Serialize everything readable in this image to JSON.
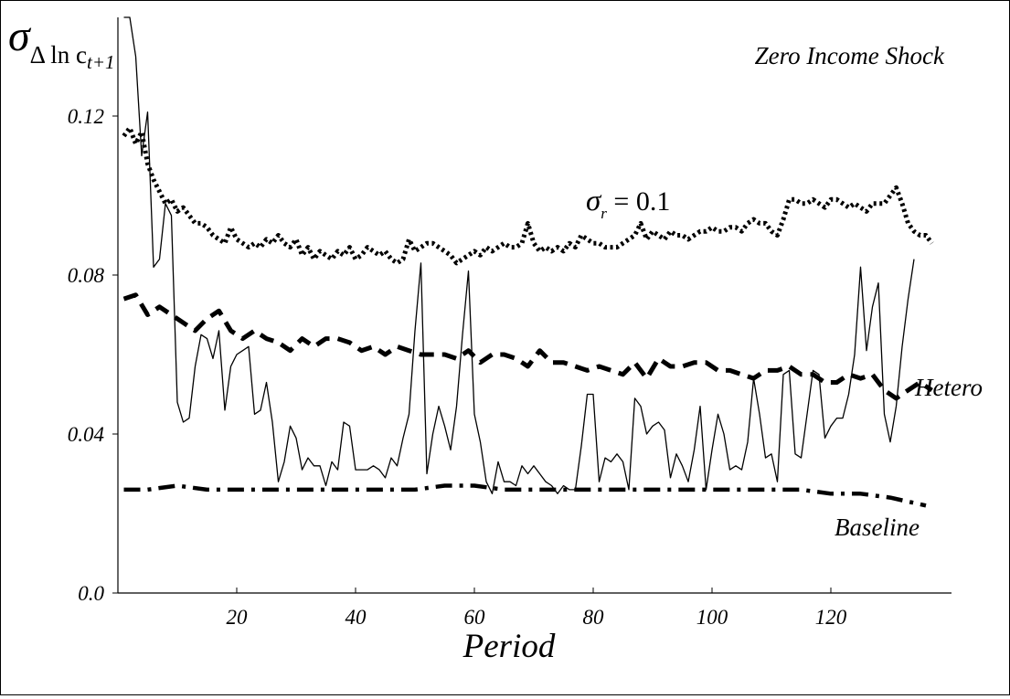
{
  "chart_data": {
    "type": "line",
    "xlabel": "Period",
    "ylabel": {
      "symbol": "σ",
      "subscript": "Δ ln c",
      "sub_subscript": "t+1"
    },
    "xlim": [
      0,
      140
    ],
    "ylim": [
      0,
      0.13
    ],
    "x_ticks": [
      20,
      40,
      60,
      80,
      100,
      120
    ],
    "x_tick_labels": [
      "20",
      "40",
      "60",
      "80",
      "100",
      "120"
    ],
    "y_ticks": [
      0,
      0.04,
      0.08,
      0.12
    ],
    "y_tick_labels": [
      "0.0",
      "0.04",
      "0.08",
      "0.12"
    ],
    "grid": false,
    "annotations": {
      "zero_income_shock": "Zero Income Shock",
      "sigma_r": {
        "symbol": "σ",
        "subscript": "r",
        "rest": " = 0.1"
      },
      "hetero": "Hetero",
      "baseline": "Baseline"
    },
    "series": [
      {
        "key": "zero_income_shock",
        "style": "solid-thin",
        "x": [
          1,
          2,
          3,
          4,
          5,
          6,
          7,
          8,
          9,
          10,
          11,
          12,
          13,
          14,
          15,
          16,
          17,
          18,
          19,
          20,
          21,
          22,
          23,
          24,
          25,
          26,
          27,
          28,
          29,
          30,
          31,
          32,
          33,
          34,
          35,
          36,
          37,
          38,
          39,
          40,
          41,
          42,
          43,
          44,
          45,
          46,
          47,
          48,
          49,
          50,
          51,
          52,
          53,
          54,
          55,
          56,
          57,
          58,
          59,
          60,
          61,
          62,
          63,
          64,
          65,
          66,
          67,
          68,
          69,
          70,
          71,
          72,
          73,
          74,
          75,
          76,
          77,
          78,
          79,
          80,
          81,
          82,
          83,
          84,
          85,
          86,
          87,
          88,
          89,
          90,
          91,
          92,
          93,
          94,
          95,
          96,
          97,
          98,
          99,
          100,
          101,
          102,
          103,
          104,
          105,
          106,
          107,
          108,
          109,
          110,
          111,
          112,
          113,
          114,
          115,
          116,
          117,
          118,
          119,
          120,
          121,
          122,
          123,
          124,
          125,
          126,
          127,
          128,
          129,
          130,
          131,
          132,
          133,
          134
        ],
        "y": [
          0.16,
          0.15,
          0.135,
          0.11,
          0.121,
          0.082,
          0.084,
          0.098,
          0.095,
          0.048,
          0.043,
          0.044,
          0.057,
          0.065,
          0.064,
          0.059,
          0.066,
          0.046,
          0.057,
          0.06,
          0.061,
          0.062,
          0.045,
          0.046,
          0.053,
          0.043,
          0.028,
          0.033,
          0.042,
          0.039,
          0.031,
          0.034,
          0.032,
          0.032,
          0.027,
          0.033,
          0.031,
          0.043,
          0.042,
          0.031,
          0.031,
          0.031,
          0.032,
          0.031,
          0.029,
          0.034,
          0.032,
          0.039,
          0.045,
          0.066,
          0.083,
          0.03,
          0.04,
          0.047,
          0.042,
          0.036,
          0.047,
          0.065,
          0.081,
          0.045,
          0.038,
          0.028,
          0.025,
          0.033,
          0.028,
          0.028,
          0.027,
          0.032,
          0.03,
          0.032,
          0.03,
          0.028,
          0.027,
          0.025,
          0.027,
          0.026,
          0.026,
          0.037,
          0.05,
          0.05,
          0.028,
          0.034,
          0.033,
          0.035,
          0.033,
          0.026,
          0.049,
          0.047,
          0.04,
          0.042,
          0.043,
          0.041,
          0.029,
          0.035,
          0.032,
          0.028,
          0.036,
          0.047,
          0.026,
          0.036,
          0.045,
          0.04,
          0.031,
          0.032,
          0.031,
          0.038,
          0.054,
          0.045,
          0.034,
          0.035,
          0.028,
          0.055,
          0.056,
          0.035,
          0.034,
          0.045,
          0.056,
          0.055,
          0.039,
          0.042,
          0.044,
          0.044,
          0.05,
          0.06,
          0.082,
          0.061,
          0.072,
          0.078,
          0.045,
          0.038,
          0.047,
          0.062,
          0.074,
          0.084
        ]
      },
      {
        "key": "sigma_r",
        "style": "dotted",
        "x": [
          1,
          2,
          3,
          4,
          5,
          6,
          7,
          8,
          9,
          10,
          11,
          12,
          13,
          14,
          15,
          16,
          17,
          18,
          19,
          20,
          21,
          22,
          23,
          24,
          25,
          26,
          27,
          28,
          29,
          30,
          31,
          32,
          33,
          34,
          35,
          36,
          37,
          38,
          39,
          40,
          41,
          42,
          43,
          44,
          45,
          46,
          47,
          48,
          49,
          50,
          51,
          52,
          53,
          54,
          55,
          56,
          57,
          58,
          59,
          60,
          61,
          62,
          63,
          64,
          65,
          66,
          67,
          68,
          69,
          70,
          71,
          72,
          73,
          74,
          75,
          76,
          77,
          78,
          79,
          80,
          81,
          82,
          83,
          84,
          85,
          86,
          87,
          88,
          89,
          90,
          91,
          92,
          93,
          94,
          95,
          96,
          97,
          98,
          99,
          100,
          101,
          102,
          103,
          104,
          105,
          106,
          107,
          108,
          109,
          110,
          111,
          112,
          113,
          114,
          115,
          116,
          117,
          118,
          119,
          120,
          121,
          122,
          123,
          124,
          125,
          126,
          127,
          128,
          129,
          130,
          131,
          132,
          133,
          134,
          135,
          136,
          137
        ],
        "y": [
          0.115,
          0.117,
          0.113,
          0.116,
          0.108,
          0.104,
          0.101,
          0.098,
          0.099,
          0.096,
          0.097,
          0.095,
          0.093,
          0.093,
          0.092,
          0.09,
          0.089,
          0.088,
          0.092,
          0.089,
          0.088,
          0.087,
          0.088,
          0.087,
          0.089,
          0.088,
          0.09,
          0.088,
          0.087,
          0.089,
          0.085,
          0.087,
          0.084,
          0.086,
          0.085,
          0.084,
          0.086,
          0.085,
          0.087,
          0.084,
          0.085,
          0.087,
          0.086,
          0.085,
          0.086,
          0.084,
          0.083,
          0.084,
          0.089,
          0.086,
          0.087,
          0.088,
          0.088,
          0.087,
          0.086,
          0.085,
          0.083,
          0.084,
          0.085,
          0.086,
          0.085,
          0.087,
          0.086,
          0.087,
          0.088,
          0.087,
          0.087,
          0.088,
          0.093,
          0.088,
          0.086,
          0.087,
          0.086,
          0.087,
          0.086,
          0.088,
          0.087,
          0.09,
          0.089,
          0.088,
          0.088,
          0.087,
          0.087,
          0.087,
          0.088,
          0.089,
          0.09,
          0.093,
          0.089,
          0.091,
          0.09,
          0.089,
          0.091,
          0.09,
          0.09,
          0.089,
          0.09,
          0.091,
          0.091,
          0.092,
          0.091,
          0.091,
          0.092,
          0.092,
          0.091,
          0.093,
          0.094,
          0.093,
          0.093,
          0.091,
          0.09,
          0.094,
          0.099,
          0.099,
          0.098,
          0.098,
          0.099,
          0.098,
          0.097,
          0.099,
          0.099,
          0.098,
          0.097,
          0.098,
          0.097,
          0.096,
          0.098,
          0.098,
          0.098,
          0.1,
          0.102,
          0.098,
          0.093,
          0.091,
          0.09,
          0.09,
          0.088
        ]
      },
      {
        "key": "hetero",
        "style": "long-dash",
        "x": [
          1,
          3,
          5,
          7,
          9,
          11,
          13,
          15,
          17,
          19,
          21,
          23,
          25,
          27,
          29,
          31,
          33,
          35,
          37,
          39,
          41,
          43,
          45,
          47,
          49,
          51,
          53,
          55,
          57,
          59,
          61,
          63,
          65,
          67,
          69,
          71,
          73,
          75,
          77,
          79,
          81,
          83,
          85,
          87,
          89,
          91,
          93,
          95,
          97,
          99,
          101,
          103,
          105,
          107,
          109,
          111,
          113,
          115,
          117,
          119,
          121,
          123,
          125,
          127,
          129,
          131,
          133,
          135,
          137
        ],
        "y": [
          0.074,
          0.075,
          0.07,
          0.072,
          0.07,
          0.068,
          0.066,
          0.069,
          0.071,
          0.066,
          0.064,
          0.066,
          0.064,
          0.063,
          0.061,
          0.064,
          0.062,
          0.064,
          0.064,
          0.063,
          0.061,
          0.062,
          0.06,
          0.062,
          0.061,
          0.06,
          0.06,
          0.06,
          0.059,
          0.061,
          0.058,
          0.06,
          0.06,
          0.059,
          0.057,
          0.061,
          0.058,
          0.058,
          0.057,
          0.056,
          0.057,
          0.056,
          0.055,
          0.058,
          0.054,
          0.059,
          0.057,
          0.057,
          0.058,
          0.058,
          0.056,
          0.056,
          0.055,
          0.054,
          0.056,
          0.056,
          0.057,
          0.055,
          0.055,
          0.053,
          0.053,
          0.055,
          0.054,
          0.055,
          0.051,
          0.049,
          0.051,
          0.053,
          0.051
        ]
      },
      {
        "key": "baseline",
        "style": "dash-dot",
        "x": [
          1,
          5,
          10,
          15,
          20,
          25,
          30,
          35,
          40,
          45,
          50,
          55,
          60,
          65,
          70,
          75,
          80,
          85,
          90,
          95,
          100,
          105,
          110,
          115,
          120,
          125,
          130,
          133,
          136
        ],
        "y": [
          0.026,
          0.026,
          0.027,
          0.026,
          0.026,
          0.026,
          0.026,
          0.026,
          0.026,
          0.026,
          0.026,
          0.027,
          0.027,
          0.026,
          0.026,
          0.026,
          0.026,
          0.026,
          0.026,
          0.026,
          0.026,
          0.026,
          0.026,
          0.026,
          0.025,
          0.025,
          0.024,
          0.023,
          0.022
        ]
      }
    ]
  }
}
